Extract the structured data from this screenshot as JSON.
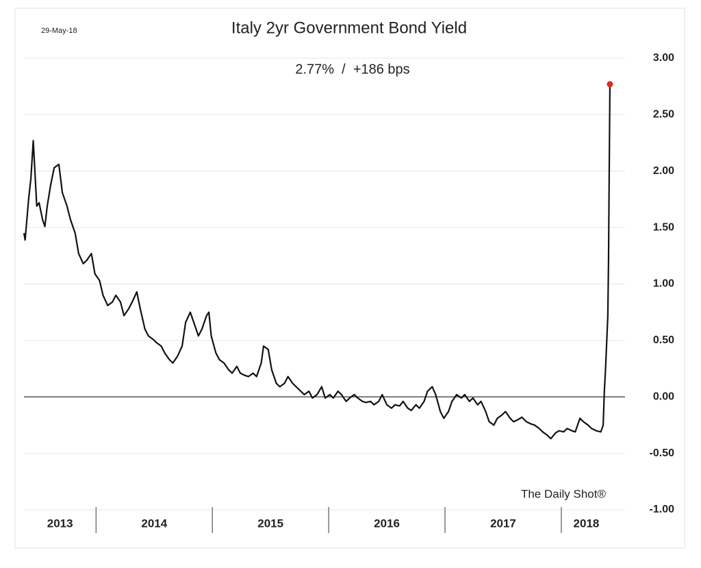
{
  "chart_data": {
    "type": "line",
    "date": "29-May-18",
    "title": "Italy 2yr Government Bond Yield",
    "subtitle": "2.77%  /  +186 bps",
    "source": "The Daily Shot®",
    "categories": [
      "2013",
      "2014",
      "2015",
      "2016",
      "2017",
      "2018"
    ],
    "year_separators": [
      2014,
      2015,
      2016,
      2017,
      2018
    ],
    "xlim": [
      2013.38,
      2018.43
    ],
    "ylim": [
      -1,
      3
    ],
    "yticks": [
      {
        "value": -1,
        "label": "-1.00"
      },
      {
        "value": -0.5,
        "label": "-0.50"
      },
      {
        "value": 0,
        "label": "0.00"
      },
      {
        "value": 0.5,
        "label": "0.50"
      },
      {
        "value": 1,
        "label": "1.00"
      },
      {
        "value": 1.5,
        "label": "1.50"
      },
      {
        "value": 2,
        "label": "2.00"
      },
      {
        "value": 2.5,
        "label": "2.50"
      },
      {
        "value": 3,
        "label": "3.00"
      }
    ],
    "grid": true,
    "zero_line": true,
    "last_point_color": "#e02a2a",
    "x": [
      2013.38,
      2013.39,
      2013.42,
      2013.44,
      2013.46,
      2013.48,
      2013.49,
      2013.51,
      2013.54,
      2013.56,
      2013.58,
      2013.61,
      2013.64,
      2013.68,
      2013.71,
      2013.75,
      2013.78,
      2013.82,
      2013.85,
      2013.89,
      2013.92,
      2013.96,
      2013.99,
      2014.03,
      2014.06,
      2014.1,
      2014.14,
      2014.17,
      2014.21,
      2014.24,
      2014.28,
      2014.31,
      2014.35,
      2014.38,
      2014.42,
      2014.45,
      2014.49,
      2014.52,
      2014.56,
      2014.59,
      2014.63,
      2014.66,
      2014.7,
      2014.74,
      2014.77,
      2014.81,
      2014.84,
      2014.88,
      2014.91,
      2014.95,
      2014.97,
      2014.99,
      2015.03,
      2015.06,
      2015.1,
      2015.14,
      2015.17,
      2015.21,
      2015.24,
      2015.28,
      2015.31,
      2015.35,
      2015.38,
      2015.42,
      2015.44,
      2015.48,
      2015.51,
      2015.55,
      2015.58,
      2015.62,
      2015.65,
      2015.69,
      2015.72,
      2015.76,
      2015.79,
      2015.83,
      2015.86,
      2015.9,
      2015.94,
      2015.97,
      2016.01,
      2016.04,
      2016.08,
      2016.11,
      2016.15,
      2016.18,
      2016.22,
      2016.25,
      2016.29,
      2016.32,
      2016.36,
      2016.39,
      2016.43,
      2016.46,
      2016.5,
      2016.54,
      2016.57,
      2016.61,
      2016.64,
      2016.68,
      2016.71,
      2016.75,
      2016.78,
      2016.82,
      2016.85,
      2016.89,
      2016.92,
      2016.96,
      2016.99,
      2017.03,
      2017.06,
      2017.1,
      2017.14,
      2017.17,
      2017.21,
      2017.24,
      2017.28,
      2017.31,
      2017.35,
      2017.38,
      2017.42,
      2017.45,
      2017.49,
      2017.52,
      2017.56,
      2017.59,
      2017.63,
      2017.66,
      2017.7,
      2017.74,
      2017.77,
      2017.81,
      2017.84,
      2017.88,
      2017.91,
      2017.95,
      2017.98,
      2018.02,
      2018.05,
      2018.09,
      2018.12,
      2018.16,
      2018.19,
      2018.23,
      2018.26,
      2018.3,
      2018.34,
      2018.36,
      2018.37,
      2018.38,
      2018.39,
      2018.4,
      2018.406,
      2018.412,
      2018.418
    ],
    "series": [
      {
        "color": "#111111",
        "values": [
          1.45,
          1.39,
          1.75,
          1.94,
          2.27,
          1.88,
          1.69,
          1.72,
          1.57,
          1.51,
          1.69,
          1.88,
          2.03,
          2.06,
          1.81,
          1.69,
          1.57,
          1.45,
          1.27,
          1.18,
          1.21,
          1.27,
          1.09,
          1.03,
          0.9,
          0.81,
          0.84,
          0.9,
          0.84,
          0.72,
          0.78,
          0.84,
          0.93,
          0.78,
          0.6,
          0.54,
          0.51,
          0.48,
          0.45,
          0.39,
          0.33,
          0.3,
          0.36,
          0.45,
          0.66,
          0.75,
          0.66,
          0.54,
          0.6,
          0.72,
          0.75,
          0.54,
          0.39,
          0.33,
          0.3,
          0.24,
          0.21,
          0.27,
          0.21,
          0.19,
          0.18,
          0.21,
          0.18,
          0.3,
          0.45,
          0.42,
          0.24,
          0.12,
          0.09,
          0.12,
          0.18,
          0.12,
          0.09,
          0.05,
          0.02,
          0.05,
          -0.01,
          0.02,
          0.09,
          -0.01,
          0.02,
          -0.01,
          0.05,
          0.02,
          -0.04,
          -0.01,
          0.02,
          -0.01,
          -0.04,
          -0.05,
          -0.04,
          -0.07,
          -0.04,
          0.02,
          -0.07,
          -0.1,
          -0.07,
          -0.08,
          -0.04,
          -0.1,
          -0.12,
          -0.07,
          -0.1,
          -0.04,
          0.05,
          0.09,
          0.02,
          -0.13,
          -0.19,
          -0.13,
          -0.04,
          0.02,
          -0.01,
          0.02,
          -0.04,
          -0.01,
          -0.07,
          -0.04,
          -0.13,
          -0.22,
          -0.25,
          -0.19,
          -0.16,
          -0.13,
          -0.19,
          -0.22,
          -0.2,
          -0.18,
          -0.22,
          -0.24,
          -0.25,
          -0.28,
          -0.31,
          -0.34,
          -0.37,
          -0.32,
          -0.3,
          -0.31,
          -0.28,
          -0.3,
          -0.31,
          -0.19,
          -0.22,
          -0.25,
          -0.28,
          -0.3,
          -0.31,
          -0.25,
          0.05,
          0.24,
          0.48,
          0.72,
          1.21,
          2.0,
          2.77
        ]
      }
    ]
  }
}
